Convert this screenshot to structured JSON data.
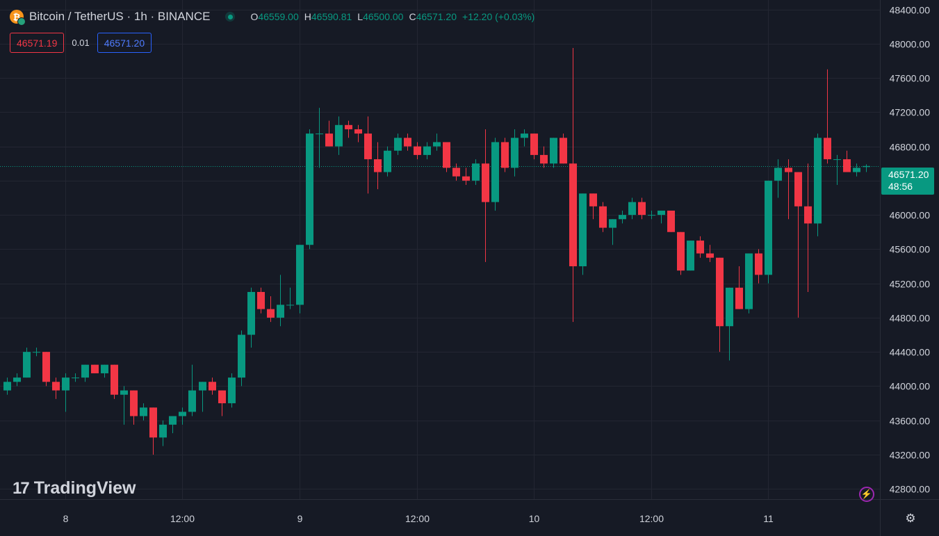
{
  "header": {
    "coin_icon": "bitcoin-icon",
    "coin_glyph": "₿",
    "symbol_title": "Bitcoin / TetherUS · 1h · BINANCE",
    "ohlc": {
      "o_label": "O",
      "o_value": "46559.00",
      "h_label": "H",
      "h_value": "46590.81",
      "l_label": "L",
      "l_value": "46500.00",
      "c_label": "C",
      "c_value": "46571.20",
      "change": "+12.20 (+0.03%)"
    }
  },
  "trade": {
    "sell_price": "46571.19",
    "spread": "0.01",
    "buy_price": "46571.20"
  },
  "current_price": {
    "price": "46571.20",
    "countdown": "48:56"
  },
  "branding": {
    "logo_mark": "17",
    "name": "TradingView"
  },
  "icons": {
    "flash": "⚡",
    "settings": "⚙"
  },
  "colors": {
    "up": "#089981",
    "down": "#f23645",
    "background": "#161a25",
    "grid": "#232632",
    "axis_text": "#d1d4dc"
  },
  "chart_data": {
    "type": "candlestick",
    "title": "Bitcoin / TetherUS · 1h · BINANCE",
    "ylim": [
      42680,
      48510
    ],
    "y_ticks": [
      "48400.00",
      "48000.00",
      "47600.00",
      "47200.00",
      "46800.00",
      "46400.00",
      "46000.00",
      "45600.00",
      "45200.00",
      "44800.00",
      "44400.00",
      "44000.00",
      "43600.00",
      "43200.00",
      "42800.00"
    ],
    "x_ticks": [
      "8",
      "12:00",
      "9",
      "12:00",
      "10",
      "12:00",
      "11"
    ],
    "current_price_line": 46571.2,
    "candles": [
      {
        "o": 43950,
        "h": 44100,
        "l": 43900,
        "c": 44050
      },
      {
        "o": 44050,
        "h": 44150,
        "l": 44000,
        "c": 44100
      },
      {
        "o": 44100,
        "h": 44450,
        "l": 44100,
        "c": 44400
      },
      {
        "o": 44400,
        "h": 44450,
        "l": 44350,
        "c": 44400
      },
      {
        "o": 44400,
        "h": 44400,
        "l": 44000,
        "c": 44050
      },
      {
        "o": 44050,
        "h": 44100,
        "l": 43850,
        "c": 43950
      },
      {
        "o": 43950,
        "h": 44150,
        "l": 43700,
        "c": 44100
      },
      {
        "o": 44100,
        "h": 44150,
        "l": 44050,
        "c": 44100
      },
      {
        "o": 44100,
        "h": 44250,
        "l": 44050,
        "c": 44250
      },
      {
        "o": 44250,
        "h": 44250,
        "l": 44150,
        "c": 44150
      },
      {
        "o": 44150,
        "h": 44250,
        "l": 44100,
        "c": 44250
      },
      {
        "o": 44250,
        "h": 44250,
        "l": 43850,
        "c": 43900
      },
      {
        "o": 43900,
        "h": 44000,
        "l": 43550,
        "c": 43950
      },
      {
        "o": 43950,
        "h": 43950,
        "l": 43550,
        "c": 43650
      },
      {
        "o": 43650,
        "h": 43800,
        "l": 43600,
        "c": 43750
      },
      {
        "o": 43750,
        "h": 43750,
        "l": 43200,
        "c": 43400
      },
      {
        "o": 43400,
        "h": 43600,
        "l": 43300,
        "c": 43550
      },
      {
        "o": 43550,
        "h": 43650,
        "l": 43450,
        "c": 43650
      },
      {
        "o": 43650,
        "h": 43750,
        "l": 43550,
        "c": 43700
      },
      {
        "o": 43700,
        "h": 44250,
        "l": 43650,
        "c": 43950
      },
      {
        "o": 43950,
        "h": 44050,
        "l": 43700,
        "c": 44050
      },
      {
        "o": 44050,
        "h": 44100,
        "l": 43900,
        "c": 43950
      },
      {
        "o": 43950,
        "h": 43950,
        "l": 43650,
        "c": 43800
      },
      {
        "o": 43800,
        "h": 44150,
        "l": 43750,
        "c": 44100
      },
      {
        "o": 44100,
        "h": 44650,
        "l": 44000,
        "c": 44600
      },
      {
        "o": 44600,
        "h": 45150,
        "l": 44450,
        "c": 45100
      },
      {
        "o": 45100,
        "h": 45150,
        "l": 44850,
        "c": 44900
      },
      {
        "o": 44900,
        "h": 45050,
        "l": 44750,
        "c": 44800
      },
      {
        "o": 44800,
        "h": 45300,
        "l": 44700,
        "c": 44950
      },
      {
        "o": 44950,
        "h": 45150,
        "l": 44900,
        "c": 44950
      },
      {
        "o": 44950,
        "h": 45650,
        "l": 44850,
        "c": 45650
      },
      {
        "o": 45650,
        "h": 47000,
        "l": 45600,
        "c": 46950
      },
      {
        "o": 46950,
        "h": 47250,
        "l": 46550,
        "c": 46950
      },
      {
        "o": 46950,
        "h": 47100,
        "l": 46800,
        "c": 46800
      },
      {
        "o": 46800,
        "h": 47150,
        "l": 46700,
        "c": 47050
      },
      {
        "o": 47050,
        "h": 47100,
        "l": 46900,
        "c": 47000
      },
      {
        "o": 47000,
        "h": 47050,
        "l": 46850,
        "c": 46950
      },
      {
        "o": 46950,
        "h": 47150,
        "l": 46250,
        "c": 46650
      },
      {
        "o": 46650,
        "h": 46850,
        "l": 46300,
        "c": 46500
      },
      {
        "o": 46500,
        "h": 46800,
        "l": 46450,
        "c": 46750
      },
      {
        "o": 46750,
        "h": 46950,
        "l": 46700,
        "c": 46900
      },
      {
        "o": 46900,
        "h": 46950,
        "l": 46750,
        "c": 46800
      },
      {
        "o": 46800,
        "h": 46850,
        "l": 46650,
        "c": 46700
      },
      {
        "o": 46700,
        "h": 46850,
        "l": 46650,
        "c": 46800
      },
      {
        "o": 46800,
        "h": 46950,
        "l": 46750,
        "c": 46850
      },
      {
        "o": 46850,
        "h": 46850,
        "l": 46500,
        "c": 46550
      },
      {
        "o": 46550,
        "h": 46600,
        "l": 46400,
        "c": 46450
      },
      {
        "o": 46450,
        "h": 46550,
        "l": 46350,
        "c": 46400
      },
      {
        "o": 46400,
        "h": 46650,
        "l": 46350,
        "c": 46600
      },
      {
        "o": 46600,
        "h": 47000,
        "l": 45450,
        "c": 46150
      },
      {
        "o": 46150,
        "h": 46900,
        "l": 46050,
        "c": 46850
      },
      {
        "o": 46850,
        "h": 46900,
        "l": 46500,
        "c": 46550
      },
      {
        "o": 46550,
        "h": 47000,
        "l": 46450,
        "c": 46900
      },
      {
        "o": 46900,
        "h": 47000,
        "l": 46800,
        "c": 46950
      },
      {
        "o": 46950,
        "h": 46950,
        "l": 46650,
        "c": 46700
      },
      {
        "o": 46700,
        "h": 46800,
        "l": 46550,
        "c": 46600
      },
      {
        "o": 46600,
        "h": 46900,
        "l": 46550,
        "c": 46900
      },
      {
        "o": 46900,
        "h": 46950,
        "l": 46600,
        "c": 46600
      },
      {
        "o": 46600,
        "h": 47950,
        "l": 44750,
        "c": 45400
      },
      {
        "o": 45400,
        "h": 46250,
        "l": 45300,
        "c": 46250
      },
      {
        "o": 46250,
        "h": 46250,
        "l": 45950,
        "c": 46100
      },
      {
        "o": 46100,
        "h": 46150,
        "l": 45800,
        "c": 45850
      },
      {
        "o": 45850,
        "h": 45950,
        "l": 45650,
        "c": 45950
      },
      {
        "o": 45950,
        "h": 46050,
        "l": 45900,
        "c": 46000
      },
      {
        "o": 46000,
        "h": 46200,
        "l": 45950,
        "c": 46150
      },
      {
        "o": 46150,
        "h": 46200,
        "l": 45950,
        "c": 46000
      },
      {
        "o": 46000,
        "h": 46050,
        "l": 45950,
        "c": 46000
      },
      {
        "o": 46000,
        "h": 46050,
        "l": 45900,
        "c": 46050
      },
      {
        "o": 46050,
        "h": 46050,
        "l": 45800,
        "c": 45800
      },
      {
        "o": 45800,
        "h": 45800,
        "l": 45300,
        "c": 45350
      },
      {
        "o": 45350,
        "h": 45700,
        "l": 45350,
        "c": 45700
      },
      {
        "o": 45700,
        "h": 45750,
        "l": 45500,
        "c": 45550
      },
      {
        "o": 45550,
        "h": 45650,
        "l": 45450,
        "c": 45500
      },
      {
        "o": 45500,
        "h": 45500,
        "l": 44400,
        "c": 44700
      },
      {
        "o": 44700,
        "h": 45150,
        "l": 44300,
        "c": 45150
      },
      {
        "o": 45150,
        "h": 45400,
        "l": 44900,
        "c": 44900
      },
      {
        "o": 44900,
        "h": 45550,
        "l": 44850,
        "c": 45550
      },
      {
        "o": 45550,
        "h": 45600,
        "l": 45200,
        "c": 45300
      },
      {
        "o": 45300,
        "h": 46400,
        "l": 45200,
        "c": 46400
      },
      {
        "o": 46400,
        "h": 46650,
        "l": 46200,
        "c": 46550
      },
      {
        "o": 46550,
        "h": 46650,
        "l": 45950,
        "c": 46500
      },
      {
        "o": 46500,
        "h": 46500,
        "l": 44800,
        "c": 46100
      },
      {
        "o": 46100,
        "h": 46600,
        "l": 45100,
        "c": 45900
      },
      {
        "o": 45900,
        "h": 46950,
        "l": 45750,
        "c": 46900
      },
      {
        "o": 46900,
        "h": 47700,
        "l": 46600,
        "c": 46650
      },
      {
        "o": 46650,
        "h": 46700,
        "l": 46350,
        "c": 46650
      },
      {
        "o": 46650,
        "h": 46750,
        "l": 46500,
        "c": 46500
      },
      {
        "o": 46500,
        "h": 46600,
        "l": 46450,
        "c": 46550
      },
      {
        "o": 46559,
        "h": 46591,
        "l": 46500,
        "c": 46571
      }
    ]
  }
}
